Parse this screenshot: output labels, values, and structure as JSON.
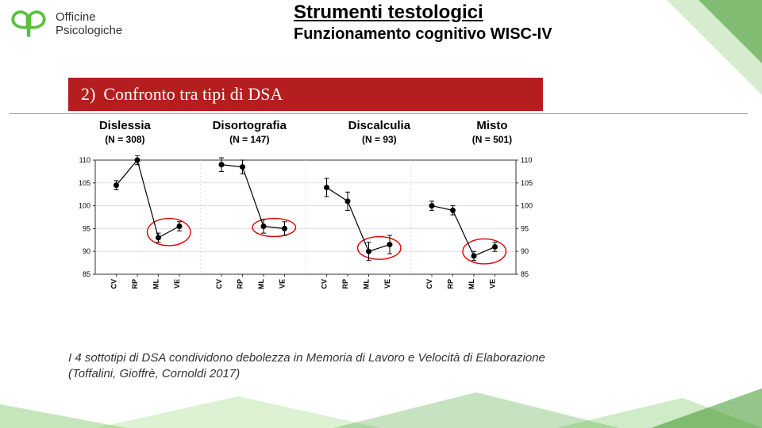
{
  "brand": {
    "line1": "Officine",
    "line2": "Psicologiche",
    "leaf_color": "#5cbf3f"
  },
  "title": {
    "main": "Strumenti testologici",
    "sub": "Funzionamento cognitivo WISC-IV"
  },
  "heading": {
    "num": "2)",
    "text": "Confronto tra tipi di DSA",
    "bg": "#b51e1e",
    "fg": "#ffffff"
  },
  "groups": [
    {
      "name": "Dislessia",
      "n": "(N = 308)"
    },
    {
      "name": "Disortografia",
      "n": "(N = 147)"
    },
    {
      "name": "Discalculia",
      "n": "(N = 93)"
    },
    {
      "name": "Misto",
      "n": "(N = 501)"
    }
  ],
  "chart": {
    "ylim": [
      85,
      110
    ],
    "ytick_step": 5,
    "yticks": [
      85,
      90,
      95,
      100,
      105,
      110
    ],
    "xlabels": [
      "CV",
      "RP",
      "ML",
      "VE"
    ],
    "label_fontsize": 9,
    "tick_fontsize": 9,
    "grid_color": "#cccccc",
    "axis_color": "#333333",
    "line_color": "#000000",
    "marker_color": "#000000",
    "marker_radius": 3.5,
    "line_width": 1.2,
    "highlight_color": "#e00000",
    "highlight_stroke": 1.4,
    "panels": [
      {
        "values": [
          104.5,
          110,
          93,
          95.5
        ],
        "err": [
          1,
          1,
          1,
          1
        ],
        "highlight": [
          2,
          3
        ]
      },
      {
        "values": [
          109,
          108.5,
          95.5,
          95
        ],
        "err": [
          1.5,
          1.5,
          1.5,
          1.5
        ],
        "highlight": [
          2,
          3
        ]
      },
      {
        "values": [
          104,
          101,
          90,
          91.5
        ],
        "err": [
          2,
          2,
          2,
          2
        ],
        "highlight": [
          2,
          3
        ]
      },
      {
        "values": [
          100,
          99,
          89,
          91
        ],
        "err": [
          1,
          1,
          1,
          1
        ],
        "highlight": [
          2,
          3
        ]
      }
    ]
  },
  "caption": "I 4  sottotipi di DSA condividono debolezza in Memoria di Lavoro e Velocità di Elaborazione (Toffalini, Gioffrè, Cornoldi  2017)"
}
